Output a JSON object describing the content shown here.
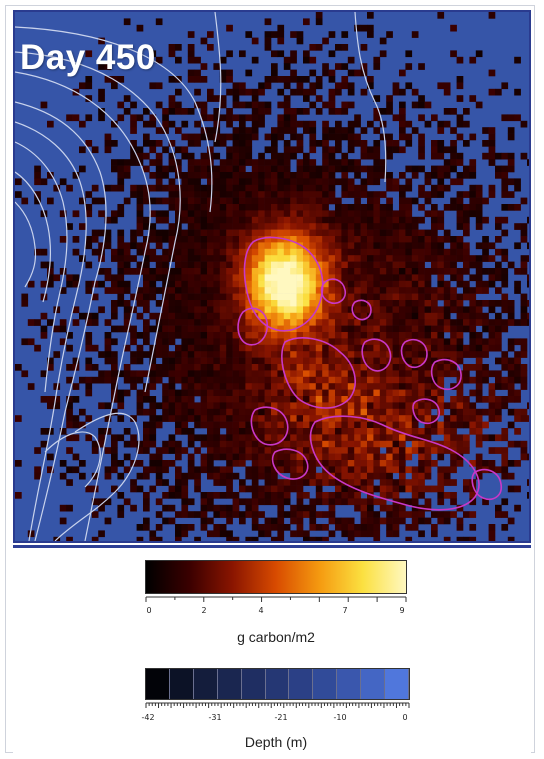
{
  "map": {
    "title": "Day 450",
    "colors": {
      "background_water": "#3655a8",
      "contour": "#c8d2ec",
      "plume_outline": "#c838c8"
    }
  },
  "legend_carbon": {
    "title": "g carbon/m2",
    "ticks": [
      "0",
      "2",
      "4",
      "7",
      "9"
    ],
    "tick_values": [
      0,
      2,
      4,
      7,
      9
    ],
    "range": [
      0,
      9
    ],
    "colors": [
      "#000000",
      "#3a0000",
      "#8a1500",
      "#d84b00",
      "#f59a10",
      "#fbe040",
      "#fff8c0"
    ]
  },
  "legend_depth": {
    "title": "Depth (m)",
    "ticks": [
      "-42",
      "-31",
      "-21",
      "-10",
      "0"
    ],
    "tick_values": [
      -42,
      -31,
      -21,
      -10,
      0
    ],
    "range": [
      -42,
      0
    ],
    "colors": [
      "#020308",
      "#0c1226",
      "#141d3c",
      "#1a2650",
      "#1f2e62",
      "#253774",
      "#2b4086",
      "#314b99",
      "#3a57ad",
      "#4466c4",
      "#5077dc"
    ]
  }
}
